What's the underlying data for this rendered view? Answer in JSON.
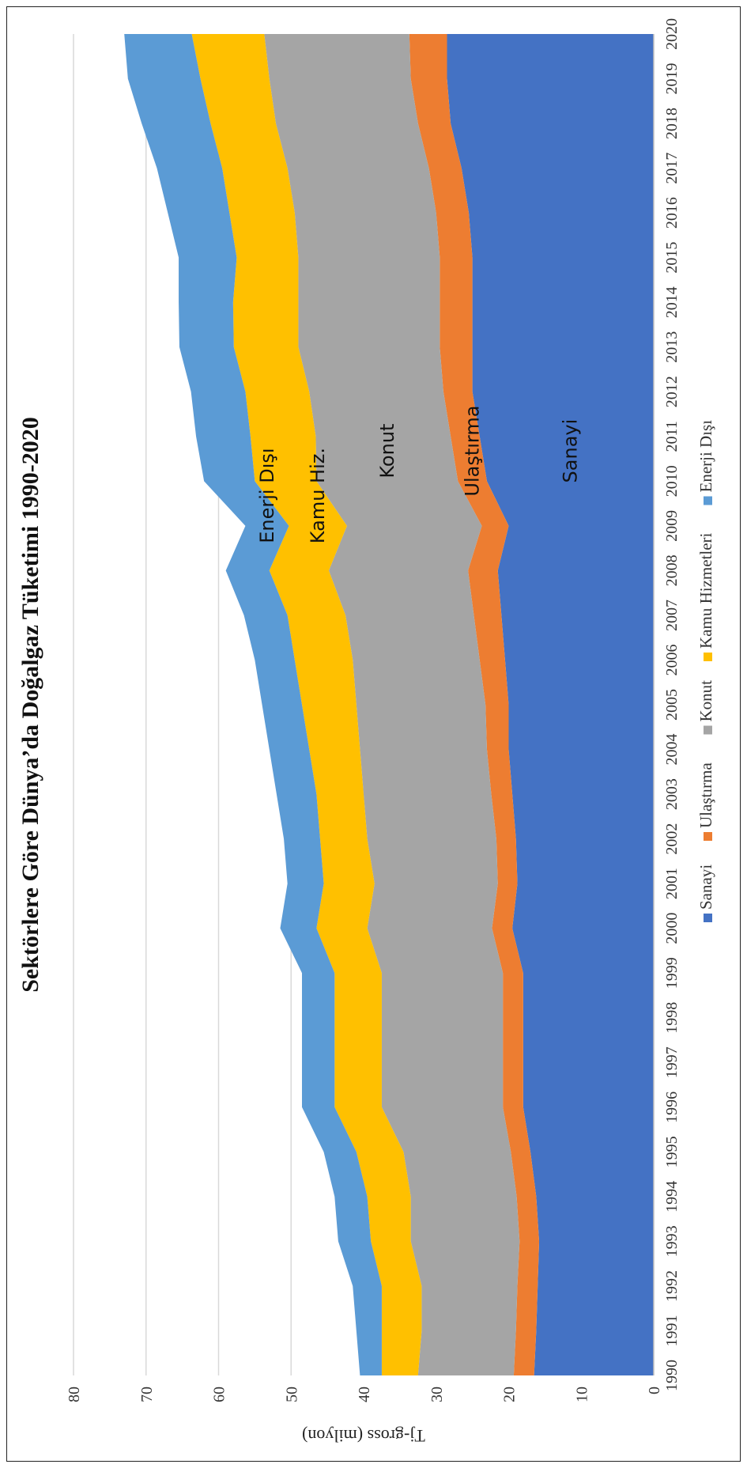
{
  "chart_data": {
    "type": "area",
    "stacked": true,
    "title": "Sektörlere Göre Dünya’da Doğalgaz Tüketimi 1990-2020",
    "ylabel": "Tj-gross (milyon)",
    "xlabel": "",
    "ylim": [
      0,
      80
    ],
    "yticks": [
      0,
      10,
      20,
      30,
      40,
      50,
      60,
      70,
      80
    ],
    "grid": true,
    "legend_position": "bottom",
    "x": [
      "1990",
      "1991",
      "1992",
      "1993",
      "1994",
      "1995",
      "1996",
      "1997",
      "1998",
      "1999",
      "2000",
      "2001",
      "2002",
      "2003",
      "2004",
      "2005",
      "2006",
      "2007",
      "2008",
      "2009",
      "2010",
      "2011",
      "2012",
      "2013",
      "2014",
      "2015",
      "2016",
      "2017",
      "2018",
      "2019",
      "2020"
    ],
    "series": [
      {
        "name": "Sanayi",
        "color": "#4472C4",
        "label": "Sanayi",
        "values": [
          16.5,
          16.2,
          16.0,
          15.8,
          16.2,
          17.0,
          18.0,
          18.0,
          18.0,
          18.0,
          19.5,
          18.8,
          19.0,
          19.5,
          20.0,
          20.0,
          20.5,
          21.0,
          21.5,
          20.0,
          23.0,
          24.0,
          25.0,
          25.0,
          25.0,
          25.0,
          25.5,
          26.5,
          28.0,
          28.5,
          28.5
        ]
      },
      {
        "name": "Ulaştırma",
        "color": "#ED7D31",
        "label": "Ulaştırma",
        "values": [
          2.8,
          2.8,
          2.8,
          2.7,
          2.7,
          2.7,
          2.8,
          2.8,
          2.8,
          2.8,
          2.8,
          2.7,
          2.7,
          2.9,
          3.0,
          3.2,
          3.5,
          3.8,
          4.1,
          3.7,
          4.0,
          4.0,
          4.0,
          4.5,
          4.5,
          4.5,
          4.5,
          4.5,
          4.5,
          5.0,
          5.2
        ]
      },
      {
        "name": "Konut",
        "color": "#A5A5A5",
        "label": "Konut",
        "values": [
          13.2,
          13.0,
          13.2,
          15.0,
          14.6,
          14.8,
          16.7,
          16.7,
          16.7,
          16.7,
          17.2,
          17.0,
          17.8,
          17.6,
          17.5,
          17.8,
          17.5,
          17.7,
          19.2,
          18.6,
          19.5,
          18.6,
          18.5,
          19.5,
          19.5,
          19.5,
          19.5,
          19.5,
          19.6,
          19.5,
          20.0
        ]
      },
      {
        "name": "Kamu Hizmetleri",
        "color": "#FFC000",
        "label": "Kamu Hiz.",
        "values": [
          5.0,
          5.5,
          5.5,
          5.5,
          6.0,
          6.5,
          6.5,
          6.5,
          6.5,
          6.5,
          7.0,
          7.0,
          6.5,
          6.5,
          7.0,
          7.5,
          8.0,
          8.0,
          8.2,
          8.0,
          8.5,
          9.0,
          8.8,
          8.9,
          9.0,
          8.5,
          9.0,
          9.0,
          9.0,
          9.5,
          10.0
        ]
      },
      {
        "name": "Enerji Dışı",
        "color": "#5B9BD5",
        "label": "Enerji Dışı",
        "values": [
          3.0,
          3.5,
          4.0,
          4.5,
          4.5,
          4.5,
          4.5,
          4.5,
          4.5,
          4.5,
          5.0,
          5.0,
          5.0,
          5.5,
          5.5,
          5.5,
          5.5,
          6.0,
          6.0,
          6.0,
          7.0,
          7.5,
          7.5,
          7.5,
          7.5,
          8.0,
          8.5,
          9.0,
          9.5,
          10.0,
          9.3
        ]
      }
    ]
  }
}
